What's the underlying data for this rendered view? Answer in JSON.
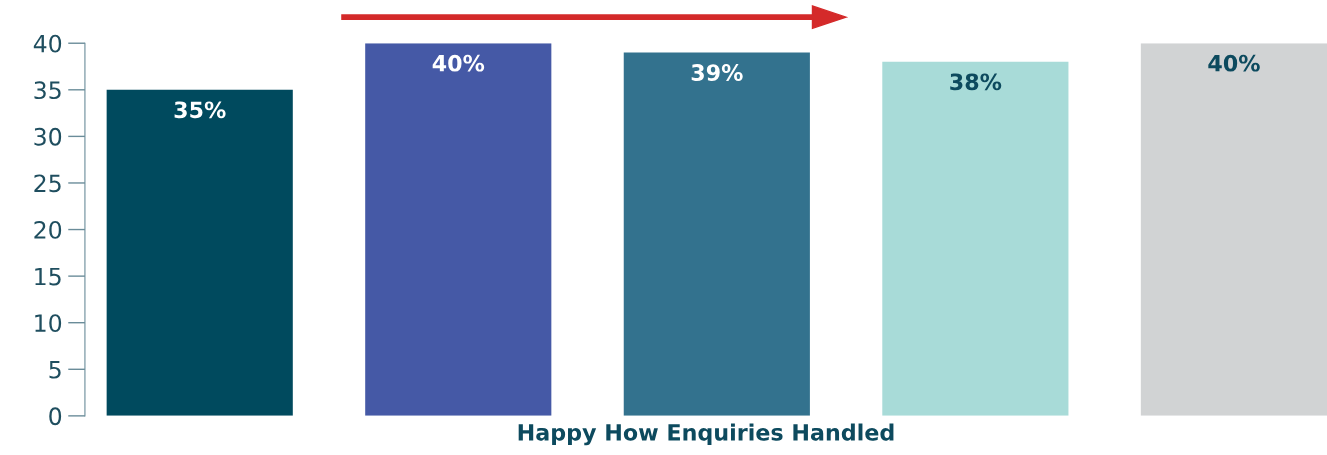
{
  "chart_data": {
    "type": "bar",
    "xlabel": "Happy How Enquiries Handled",
    "categories": [
      null,
      null,
      null,
      null,
      null
    ],
    "values": [
      35,
      40,
      39,
      38,
      40
    ],
    "colors": [
      "#004a5e",
      "#4559a6",
      "#33728e",
      "#a8dbd8",
      "#d1d3d4"
    ],
    "value_labels": [
      "35%",
      "40%",
      "39%",
      "38%",
      "40%"
    ],
    "ylim": [
      0,
      40
    ],
    "yticks": [
      0,
      5,
      10,
      15,
      20,
      25,
      30,
      35,
      40
    ],
    "grid": false,
    "legend": false
  }
}
